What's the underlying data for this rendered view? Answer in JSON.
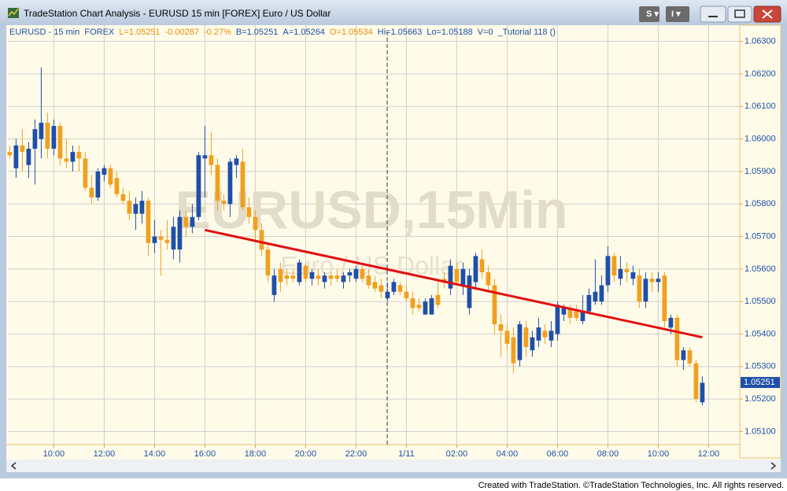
{
  "window_title": "TradeStation Chart Analysis - EURUSD 15 min [FOREX] Euro / US Dollar",
  "footer": "Created with TradeStation. ©TradeStation Technologies, Inc. All rights reserved.",
  "chart_data": {
    "type": "candlestick",
    "header_items": [
      {
        "text": "EURUSD - 15 min  FOREX",
        "color": "#1f4fa8"
      },
      {
        "text": "L=1.05251",
        "color": "#e8900c"
      },
      {
        "text": "-0.00287",
        "color": "#e8900c"
      },
      {
        "text": "-0.27%",
        "color": "#e8900c"
      },
      {
        "text": "B=1.05251",
        "color": "#1f4fa8"
      },
      {
        "text": "A=1.05264",
        "color": "#1f4fa8"
      },
      {
        "text": "O=1.05534",
        "color": "#e8900c"
      },
      {
        "text": "Hi=1.05663",
        "color": "#1f4fa8"
      },
      {
        "text": "Lo=1.05188",
        "color": "#1f4fa8"
      },
      {
        "text": "V=0",
        "color": "#1f4fa8"
      },
      {
        "text": "_Tutorial 118 ()",
        "color": "#1f4fa8"
      }
    ],
    "watermark": "EURUSD,15Min",
    "watermark_subtitle": "Euro / US Dollar",
    "up_color": "#1f4fa8",
    "down_color": "#f0a020",
    "grid": true,
    "ylim": [
      1.0506,
      1.0635
    ],
    "yticks": [
      {
        "value": 1.051,
        "label": "1.05100"
      },
      {
        "value": 1.052,
        "label": "1.05200"
      },
      {
        "value": 1.053,
        "label": "1.05300"
      },
      {
        "value": 1.054,
        "label": "1.05400"
      },
      {
        "value": 1.055,
        "label": "1.05500"
      },
      {
        "value": 1.056,
        "label": "1.05600"
      },
      {
        "value": 1.057,
        "label": "1.05700"
      },
      {
        "value": 1.058,
        "label": "1.05800"
      },
      {
        "value": 1.059,
        "label": "1.05900"
      },
      {
        "value": 1.06,
        "label": "1.06000"
      },
      {
        "value": 1.061,
        "label": "1.06100"
      },
      {
        "value": 1.062,
        "label": "1.06200"
      },
      {
        "value": 1.063,
        "label": "1.06300"
      }
    ],
    "xlim": [
      -0.3,
      115.95
    ],
    "xticks": [
      {
        "value": 7,
        "label": "10:00"
      },
      {
        "value": 15,
        "label": "12:00"
      },
      {
        "value": 23,
        "label": "14:00"
      },
      {
        "value": 31,
        "label": "16:00"
      },
      {
        "value": 39,
        "label": "18:00"
      },
      {
        "value": 47,
        "label": "20:00"
      },
      {
        "value": 55,
        "label": "22:00"
      },
      {
        "value": 63,
        "label": "1/11"
      },
      {
        "value": 71,
        "label": "02:00"
      },
      {
        "value": 79,
        "label": "04:00"
      },
      {
        "value": 87,
        "label": "06:00"
      },
      {
        "value": 95,
        "label": "08:00"
      },
      {
        "value": 103,
        "label": "10:00"
      },
      {
        "value": 111,
        "label": "12:00"
      }
    ],
    "last_price": {
      "value": 1.05251,
      "label": "1.05251",
      "color": "#1f4fa8"
    },
    "trendline": {
      "color": "#e01010",
      "x": [
        31,
        110
      ],
      "y": [
        1.0572,
        1.0539
      ]
    },
    "open": [
      1.0596,
      1.0591,
      1.0598,
      1.0592,
      1.0597,
      1.06,
      1.0605,
      1.0597,
      1.0604,
      1.0594,
      1.0593,
      1.0596,
      1.0594,
      1.0585,
      1.0582,
      1.0589,
      1.0591,
      1.0588,
      1.0583,
      1.0581,
      1.0577,
      1.0577,
      1.0581,
      1.0568,
      1.057,
      1.0569,
      1.0566,
      1.0566,
      1.0576,
      1.0573,
      1.0576,
      1.0594,
      1.0595,
      1.0592,
      1.0581,
      1.058,
      1.0592,
      1.0593,
      1.0579,
      1.0576,
      1.0572,
      1.0566,
      1.0552,
      1.056,
      1.0558,
      1.0558,
      1.0556,
      1.0561,
      1.0557,
      1.0558,
      1.0556,
      1.0558,
      1.0558,
      1.0556,
      1.0558,
      1.0557,
      1.056,
      1.0558,
      1.0556,
      1.0555,
      1.0551,
      1.0553,
      1.0555,
      1.0553,
      1.0551,
      1.0549,
      1.0546,
      1.0546,
      1.0552,
      1.0557,
      1.0554,
      1.056,
      1.0555,
      1.0548,
      1.0556,
      1.0563,
      1.0559,
      1.0555,
      1.0543,
      1.0541,
      1.0539,
      1.0532,
      1.0542,
      1.0535,
      1.0538,
      1.0541,
      1.0538,
      1.054,
      1.0546,
      1.0548,
      1.0547,
      1.0544,
      1.0547,
      1.055,
      1.055,
      1.0555,
      1.0564,
      1.0557,
      1.056,
      1.0557,
      1.0558,
      1.055,
      1.0557,
      1.0556,
      1.0558,
      1.0542,
      1.0545,
      1.0532,
      1.0535,
      1.0531,
      1.0519
    ],
    "high": [
      1.0598,
      1.06,
      1.0603,
      1.0599,
      1.0606,
      1.0622,
      1.0608,
      1.0606,
      1.0605,
      1.06,
      1.0598,
      1.0598,
      1.0596,
      1.0589,
      1.0591,
      1.0592,
      1.0592,
      1.059,
      1.0585,
      1.0584,
      1.0582,
      1.0584,
      1.0582,
      1.0575,
      1.0572,
      1.0575,
      1.0576,
      1.0578,
      1.0578,
      1.058,
      1.0596,
      1.0604,
      1.0602,
      1.0594,
      1.0583,
      1.0594,
      1.0595,
      1.0597,
      1.0582,
      1.0578,
      1.0574,
      1.0568,
      1.056,
      1.0562,
      1.056,
      1.056,
      1.0563,
      1.0562,
      1.056,
      1.056,
      1.0559,
      1.0559,
      1.056,
      1.0559,
      1.056,
      1.0561,
      1.0561,
      1.056,
      1.0558,
      1.0557,
      1.0556,
      1.0557,
      1.0556,
      1.0555,
      1.0553,
      1.0551,
      1.0551,
      1.0552,
      1.0557,
      1.0559,
      1.0563,
      1.0562,
      1.0562,
      1.056,
      1.0565,
      1.0566,
      1.0561,
      1.0557,
      1.0546,
      1.0543,
      1.0542,
      1.0544,
      1.0544,
      1.0541,
      1.0545,
      1.0543,
      1.0544,
      1.055,
      1.0549,
      1.0549,
      1.0549,
      1.0552,
      1.0554,
      1.0563,
      1.0558,
      1.0567,
      1.0565,
      1.0564,
      1.0562,
      1.0561,
      1.056,
      1.0559,
      1.0559,
      1.0559,
      1.0559,
      1.0546,
      1.0546,
      1.0536,
      1.0536,
      1.0532,
      1.0527
    ],
    "low": [
      1.0594,
      1.0588,
      1.059,
      1.0588,
      1.0586,
      1.0594,
      1.0594,
      1.0595,
      1.0592,
      1.0591,
      1.059,
      1.059,
      1.0584,
      1.058,
      1.0581,
      1.0587,
      1.0585,
      1.0582,
      1.058,
      1.0575,
      1.0572,
      1.0574,
      1.0564,
      1.0565,
      1.0558,
      1.0566,
      1.0563,
      1.0562,
      1.057,
      1.0571,
      1.0575,
      1.0582,
      1.0589,
      1.0578,
      1.0578,
      1.0576,
      1.0588,
      1.0578,
      1.0574,
      1.0568,
      1.0564,
      1.0556,
      1.055,
      1.0553,
      1.0555,
      1.0556,
      1.0555,
      1.0556,
      1.0555,
      1.0555,
      1.0554,
      1.0555,
      1.0556,
      1.0554,
      1.0556,
      1.0556,
      1.0556,
      1.0554,
      1.0553,
      1.0551,
      1.055,
      1.0552,
      1.0552,
      1.055,
      1.0546,
      1.0547,
      1.0546,
      1.0546,
      1.0548,
      1.0554,
      1.0552,
      1.0555,
      1.0552,
      1.0546,
      1.0554,
      1.0557,
      1.0553,
      1.054,
      1.0533,
      1.0535,
      1.0528,
      1.053,
      1.0533,
      1.0533,
      1.0536,
      1.0537,
      1.0536,
      1.0538,
      1.0544,
      1.0543,
      1.0544,
      1.0543,
      1.0546,
      1.0549,
      1.0549,
      1.0553,
      1.0556,
      1.0555,
      1.0556,
      1.0555,
      1.0548,
      1.0548,
      1.0553,
      1.0553,
      1.0542,
      1.054,
      1.053,
      1.0529,
      1.053,
      1.0519,
      1.0518
    ],
    "close": [
      1.0595,
      1.0598,
      1.0596,
      1.0597,
      1.0603,
      1.0605,
      1.0597,
      1.0604,
      1.0594,
      1.0593,
      1.0596,
      1.0594,
      1.0585,
      1.0582,
      1.059,
      1.0591,
      1.0586,
      1.0583,
      1.0581,
      1.0577,
      1.058,
      1.0581,
      1.0568,
      1.057,
      1.0569,
      1.0568,
      1.0573,
      1.0576,
      1.0573,
      1.0576,
      1.0595,
      1.0595,
      1.0592,
      1.0581,
      1.058,
      1.0593,
      1.0594,
      1.0579,
      1.0576,
      1.0572,
      1.0566,
      1.0558,
      1.0558,
      1.0556,
      1.0557,
      1.0557,
      1.0562,
      1.0557,
      1.0559,
      1.0557,
      1.0558,
      1.0557,
      1.0557,
      1.0558,
      1.0559,
      1.056,
      1.0557,
      1.0555,
      1.0554,
      1.0553,
      1.0553,
      1.0556,
      1.0553,
      1.0551,
      1.0548,
      1.0548,
      1.055,
      1.0551,
      1.0549,
      1.0556,
      1.0561,
      1.0556,
      1.056,
      1.0558,
      1.0564,
      1.0559,
      1.0555,
      1.0543,
      1.0541,
      1.0537,
      1.0531,
      1.0543,
      1.0536,
      1.0539,
      1.0542,
      1.0539,
      1.0541,
      1.0549,
      1.0548,
      1.0545,
      1.0545,
      1.0547,
      1.0552,
      1.0553,
      1.0555,
      1.0564,
      1.0558,
      1.056,
      1.0559,
      1.0559,
      1.055,
      1.0557,
      1.0556,
      1.0557,
      1.0544,
      1.0545,
      1.0532,
      1.0535,
      1.0531,
      1.052,
      1.0525
    ]
  }
}
